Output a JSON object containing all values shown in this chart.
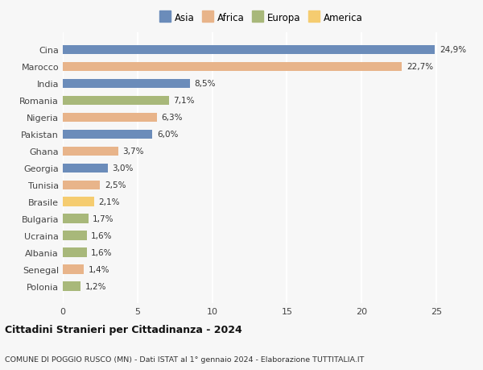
{
  "categories": [
    "Cina",
    "Marocco",
    "India",
    "Romania",
    "Nigeria",
    "Pakistan",
    "Ghana",
    "Georgia",
    "Tunisia",
    "Brasile",
    "Bulgaria",
    "Ucraina",
    "Albania",
    "Senegal",
    "Polonia"
  ],
  "values": [
    24.9,
    22.7,
    8.5,
    7.1,
    6.3,
    6.0,
    3.7,
    3.0,
    2.5,
    2.1,
    1.7,
    1.6,
    1.6,
    1.4,
    1.2
  ],
  "labels": [
    "24,9%",
    "22,7%",
    "8,5%",
    "7,1%",
    "6,3%",
    "6,0%",
    "3,7%",
    "3,0%",
    "2,5%",
    "2,1%",
    "1,7%",
    "1,6%",
    "1,6%",
    "1,4%",
    "1,2%"
  ],
  "colors": [
    "#6b8cba",
    "#e8b48a",
    "#6b8cba",
    "#a8b87a",
    "#e8b48a",
    "#6b8cba",
    "#e8b48a",
    "#6b8cba",
    "#e8b48a",
    "#f5cc70",
    "#a8b87a",
    "#a8b87a",
    "#a8b87a",
    "#e8b48a",
    "#a8b87a"
  ],
  "continents": [
    "Asia",
    "Africa",
    "Asia",
    "Europa",
    "Africa",
    "Asia",
    "Africa",
    "Asia",
    "Africa",
    "America",
    "Europa",
    "Europa",
    "Europa",
    "Africa",
    "Europa"
  ],
  "legend_labels": [
    "Asia",
    "Africa",
    "Europa",
    "America"
  ],
  "legend_colors": [
    "#6b8cba",
    "#e8b48a",
    "#a8b87a",
    "#f5cc70"
  ],
  "xlim": [
    0,
    26.5
  ],
  "xticks": [
    0,
    5,
    10,
    15,
    20,
    25
  ],
  "title": "Cittadini Stranieri per Cittadinanza - 2024",
  "subtitle": "COMUNE DI POGGIO RUSCO (MN) - Dati ISTAT al 1° gennaio 2024 - Elaborazione TUTTITALIA.IT",
  "background_color": "#f7f7f7",
  "grid_color": "#ffffff"
}
